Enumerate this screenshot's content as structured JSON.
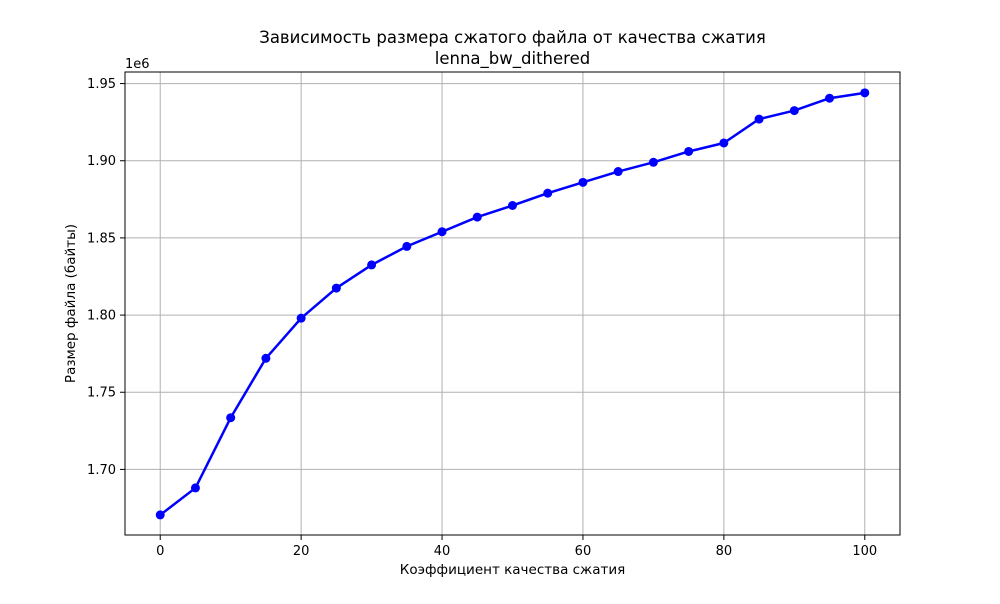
{
  "chart_data": {
    "type": "line",
    "title": "Зависимость размера сжатого файла от качества сжатия",
    "subtitle": "lenna_bw_dithered",
    "xlabel": "Коэффициент качества сжатия",
    "ylabel": "Размер файла (байты)",
    "y_offset_label": "1e6",
    "xlim": [
      -5,
      105
    ],
    "ylim": [
      1.6575,
      1.9575
    ],
    "x_ticks": [
      0,
      20,
      40,
      60,
      80,
      100
    ],
    "x_tick_labels": [
      "0",
      "20",
      "40",
      "60",
      "80",
      "100"
    ],
    "y_ticks": [
      1.7,
      1.75,
      1.8,
      1.85,
      1.9,
      1.95
    ],
    "y_tick_labels": [
      "1.70",
      "1.75",
      "1.80",
      "1.85",
      "1.90",
      "1.95"
    ],
    "grid": true,
    "line_color": "#0000ff",
    "series": [
      {
        "x": [
          0,
          5,
          10,
          15,
          20,
          25,
          30,
          35,
          40,
          45,
          50,
          55,
          60,
          65,
          70,
          75,
          80,
          85,
          90,
          95,
          100
        ],
        "y": [
          1.6705,
          1.688,
          1.7335,
          1.772,
          1.798,
          1.8175,
          1.8325,
          1.8445,
          1.854,
          1.8635,
          1.871,
          1.879,
          1.886,
          1.893,
          1.899,
          1.906,
          1.9115,
          1.927,
          1.9325,
          1.9405,
          1.944
        ]
      }
    ]
  }
}
